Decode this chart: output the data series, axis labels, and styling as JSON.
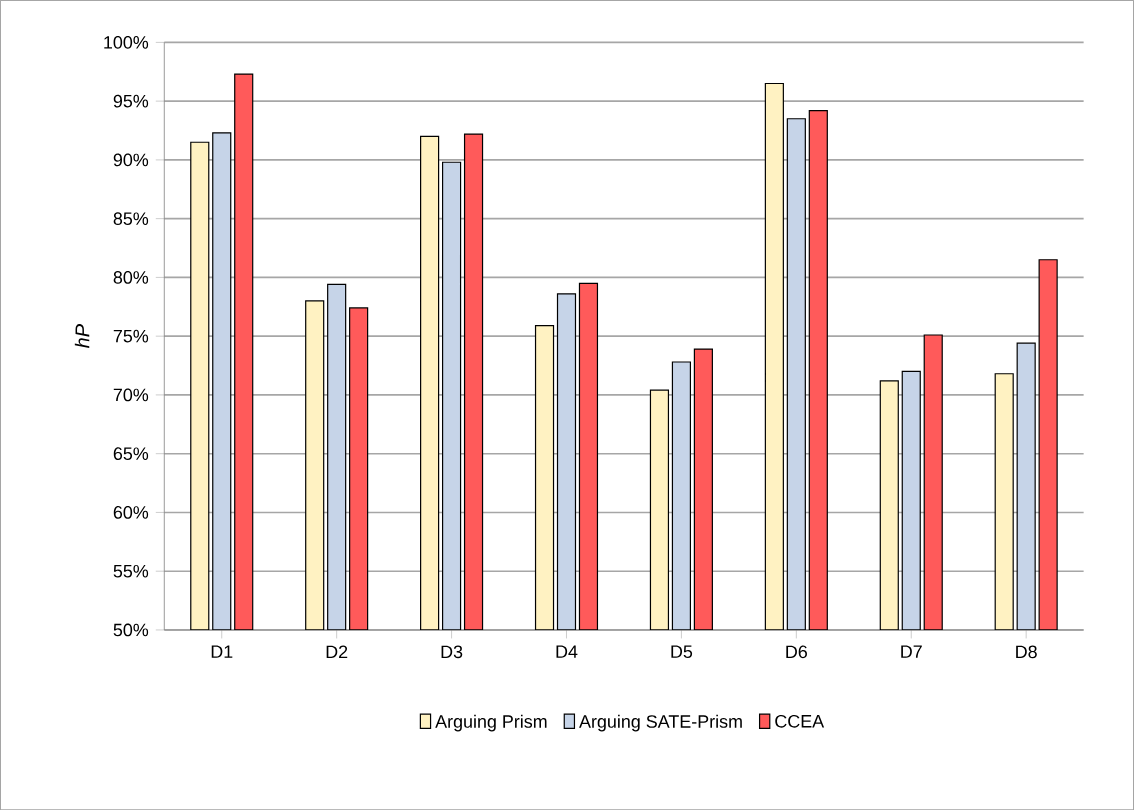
{
  "chart_data": {
    "type": "bar",
    "ylabel": "*hP*",
    "categories": [
      "D1",
      "D2",
      "D3",
      "D4",
      "D5",
      "D6",
      "D7",
      "D8"
    ],
    "series": [
      {
        "name": "Arguing Prism",
        "color": "#fff2c2",
        "values": [
          91.5,
          78.0,
          92.0,
          75.9,
          70.4,
          96.5,
          71.2,
          71.8
        ]
      },
      {
        "name": "Arguing SATE-Prism",
        "color": "#c6d4e8",
        "values": [
          92.3,
          79.4,
          89.8,
          78.6,
          72.8,
          93.5,
          72.0,
          74.4
        ]
      },
      {
        "name": "CCEA",
        "color": "#ff5a5a",
        "values": [
          97.3,
          77.4,
          92.2,
          79.5,
          73.9,
          94.2,
          75.1,
          81.5
        ]
      }
    ],
    "ylim": [
      50,
      100
    ],
    "yticks": [
      {
        "value": 50,
        "label": "50%"
      },
      {
        "value": 55,
        "label": "55%"
      },
      {
        "value": 60,
        "label": "60%"
      },
      {
        "value": 65,
        "label": "65%"
      },
      {
        "value": 70,
        "label": "70%"
      },
      {
        "value": 75,
        "label": "75%"
      },
      {
        "value": 80,
        "label": "80%"
      },
      {
        "value": 85,
        "label": "85%"
      },
      {
        "value": 90,
        "label": "90%"
      },
      {
        "value": 95,
        "label": "95%"
      },
      {
        "value": 100,
        "label": "100%"
      }
    ],
    "grid": "y",
    "legend": "bottom"
  }
}
